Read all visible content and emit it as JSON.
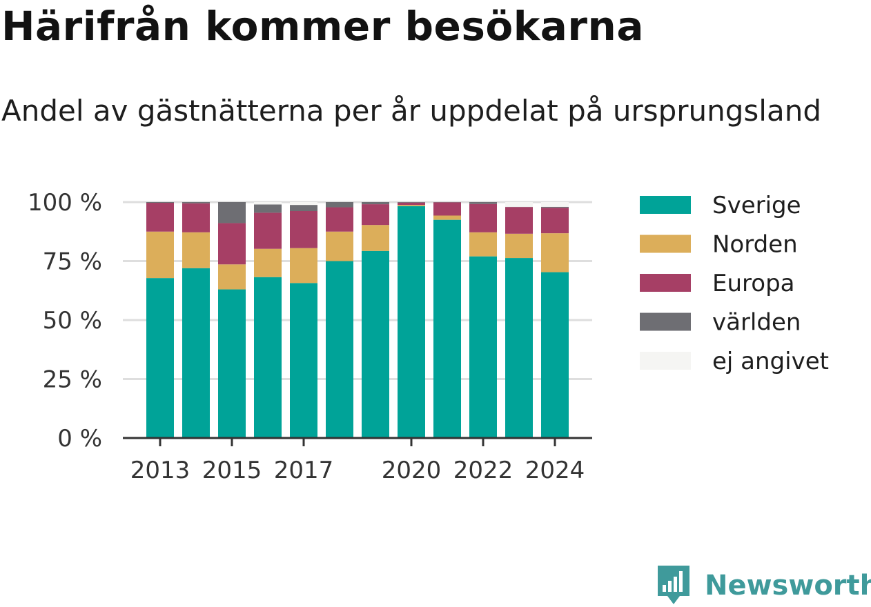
{
  "title": "Härifrån kommer besökarna",
  "subtitle": "Andel av gästnätterna per år uppdelat på ursprungsland",
  "brand": {
    "name": "Newsworthy",
    "icon": "newsworthy-logo-icon",
    "color": "#3f9a9b"
  },
  "chart_data": {
    "type": "bar",
    "stacked": true,
    "categories": [
      2013,
      2014,
      2015,
      2016,
      2017,
      2018,
      2019,
      2020,
      2021,
      2022,
      2023,
      2024
    ],
    "x_tick_labels": [
      "2013",
      "2015",
      "2017",
      "2020",
      "2022",
      "2024"
    ],
    "y_tick_labels": [
      "0 %",
      "25 %",
      "50 %",
      "75 %",
      "100 %"
    ],
    "ylim": [
      0,
      100
    ],
    "grid": true,
    "legend_position": "right",
    "series": [
      {
        "name": "Sverige",
        "color": "#00a398",
        "values": [
          67.8,
          72,
          63,
          68.2,
          65.7,
          75,
          79.3,
          98.3,
          92.5,
          77,
          76.3,
          70.3
        ]
      },
      {
        "name": "Norden",
        "color": "#dcae5a",
        "values": [
          19.7,
          15.2,
          10.6,
          12,
          14.8,
          12.5,
          11,
          0.5,
          1.8,
          10.2,
          10.3,
          16.5
        ]
      },
      {
        "name": "Europa",
        "color": "#a63f65",
        "values": [
          12.2,
          12.3,
          17.5,
          15.3,
          15.7,
          10.3,
          8.8,
          1,
          5.6,
          12,
          11.3,
          10.8
        ]
      },
      {
        "name": "världen",
        "color": "#6e6e73",
        "values": [
          0.3,
          0.5,
          8.9,
          3.5,
          2.6,
          2.2,
          0.9,
          0.2,
          0.1,
          0.8,
          0.1,
          0.4
        ]
      },
      {
        "name": "ej angivet",
        "color": "#f5f5f3",
        "values": [
          0,
          0,
          0,
          1,
          1.2,
          0,
          0,
          0,
          0,
          0,
          2,
          2
        ]
      }
    ]
  }
}
